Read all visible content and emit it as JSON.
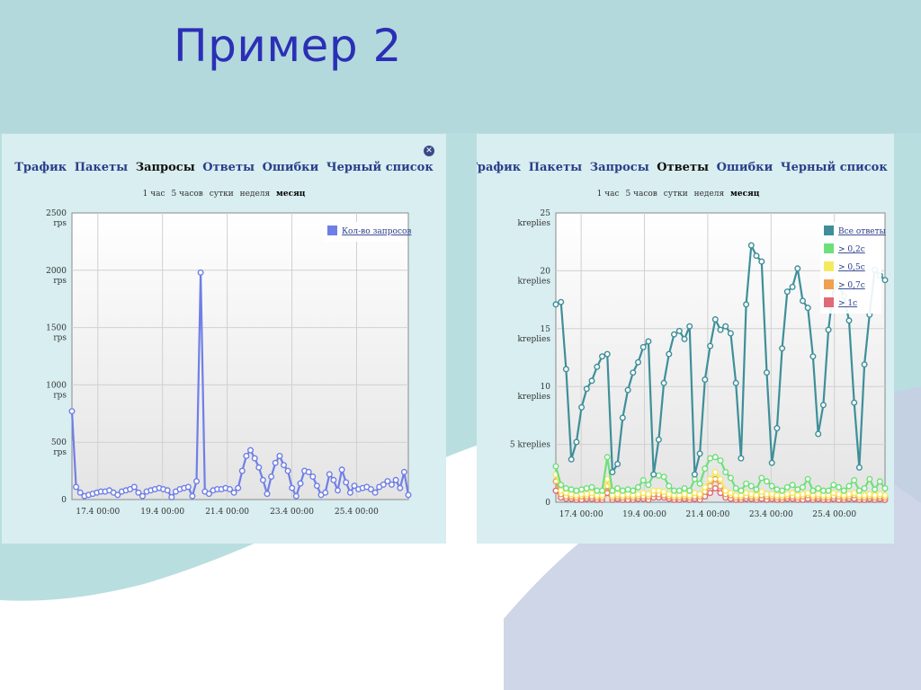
{
  "slide": {
    "title": "Пример 2"
  },
  "colors": {
    "title": "#2b2fb6",
    "panel_bg": "#d8eef0",
    "link": "#2a3e8a"
  },
  "icons": {
    "close": "close-icon",
    "close_glyph": "✕"
  },
  "left_panel": {
    "tabs": [
      "Трафик",
      "Пакеты",
      "Запросы",
      "Ответы",
      "Ошибки",
      "Черный список"
    ],
    "active_tab": 2,
    "periods": [
      "1 час",
      "5 часов",
      "сутки",
      "неделя",
      "месяц"
    ],
    "active_period": 4
  },
  "right_panel": {
    "tabs": [
      "Трафик",
      "Пакеты",
      "Запросы",
      "Ответы",
      "Ошибки",
      "Черный список"
    ],
    "active_tab": 3,
    "periods": [
      "1 час",
      "5 часов",
      "сутки",
      "неделя",
      "месяц"
    ],
    "active_period": 4
  },
  "chart_data": [
    {
      "type": "line",
      "xlabel": "",
      "ylabel": "",
      "xticks": [
        "17.4 00:00",
        "19.4 00:00",
        "21.4 00:00",
        "23.4 00:00",
        "25.4 00:00"
      ],
      "xtick_positions": [
        2,
        7,
        12,
        17,
        22
      ],
      "xlim": [
        0,
        26
      ],
      "ylim": [
        0,
        2500
      ],
      "yticks": [
        {
          "value": 0,
          "label": "0",
          "unit": ""
        },
        {
          "value": 500,
          "label": "500",
          "unit": "rps"
        },
        {
          "value": 1000,
          "label": "1000",
          "unit": "rps"
        },
        {
          "value": 1500,
          "label": "1500",
          "unit": "rps"
        },
        {
          "value": 2000,
          "label": "2000",
          "unit": "rps"
        },
        {
          "value": 2500,
          "label": "2500",
          "unit": "rps"
        }
      ],
      "grid": true,
      "legend_position": "top-right",
      "series": [
        {
          "name": "Кол-во запросов",
          "color": "#6f7fe6",
          "values": [
            770,
            110,
            60,
            30,
            40,
            50,
            60,
            70,
            70,
            80,
            60,
            40,
            70,
            80,
            90,
            110,
            60,
            30,
            70,
            80,
            90,
            100,
            90,
            80,
            20,
            70,
            90,
            100,
            110,
            30,
            160,
            1980,
            70,
            50,
            80,
            90,
            90,
            100,
            90,
            60,
            100,
            250,
            380,
            430,
            360,
            280,
            170,
            50,
            200,
            320,
            380,
            300,
            250,
            100,
            30,
            140,
            250,
            240,
            200,
            120,
            40,
            60,
            220,
            170,
            80,
            260,
            150,
            60,
            120,
            90,
            100,
            110,
            90,
            60,
            110,
            130,
            160,
            130,
            170,
            100,
            240,
            40
          ]
        }
      ]
    },
    {
      "type": "line",
      "xlabel": "",
      "ylabel": "",
      "xticks": [
        "17.4 00:00",
        "19.4 00:00",
        "21.4 00:00",
        "23.4 00:00",
        "25.4 00:00"
      ],
      "xtick_positions": [
        2,
        7,
        12,
        17,
        22
      ],
      "xlim": [
        0,
        26
      ],
      "ylim": [
        0,
        25
      ],
      "yticks": [
        {
          "value": 0,
          "label": "0",
          "unit": ""
        },
        {
          "value": 5,
          "label": "5 kreplies",
          "unit": ""
        },
        {
          "value": 10,
          "label": "10",
          "unit": "kreplies"
        },
        {
          "value": 15,
          "label": "15",
          "unit": "kreplies"
        },
        {
          "value": 20,
          "label": "20",
          "unit": "kreplies"
        },
        {
          "value": 25,
          "label": "25",
          "unit": "kreplies"
        }
      ],
      "grid": true,
      "legend_position": "top-right",
      "series": [
        {
          "name": "> 1с",
          "color": "#e06a78",
          "values": [
            1.0,
            0.4,
            0.3,
            0.3,
            0.2,
            0.2,
            0.3,
            0.3,
            0.2,
            0.2,
            0.8,
            0.2,
            0.3,
            0.2,
            0.2,
            0.2,
            0.3,
            0.3,
            0.2,
            0.4,
            0.4,
            0.4,
            0.3,
            0.2,
            0.2,
            0.3,
            0.2,
            0.3,
            0.2,
            0.5,
            0.8,
            1.2,
            0.8,
            0.4,
            0.3,
            0.2,
            0.2,
            0.3,
            0.3,
            0.2,
            0.3,
            0.2,
            0.3,
            0.2,
            0.2,
            0.3,
            0.3,
            0.2,
            0.2,
            0.3,
            0.2,
            0.3,
            0.2,
            0.2,
            0.3,
            0.2,
            0.2,
            0.3,
            0.3,
            0.2,
            0.2,
            0.3,
            0.2,
            0.3,
            0.2
          ]
        },
        {
          "name": "> 0,7с",
          "color": "#f0a050",
          "values": [
            1.8,
            0.7,
            0.5,
            0.5,
            0.4,
            0.5,
            0.5,
            0.5,
            0.4,
            0.4,
            1.4,
            0.4,
            0.5,
            0.4,
            0.5,
            0.4,
            0.5,
            0.5,
            0.5,
            0.7,
            0.7,
            0.6,
            0.5,
            0.4,
            0.4,
            0.5,
            0.4,
            0.5,
            0.5,
            0.9,
            1.4,
            2.0,
            1.4,
            0.7,
            0.6,
            0.4,
            0.4,
            0.5,
            0.5,
            0.4,
            0.6,
            0.5,
            0.5,
            0.4,
            0.4,
            0.5,
            0.5,
            0.4,
            0.5,
            0.6,
            0.4,
            0.5,
            0.4,
            0.4,
            0.5,
            0.5,
            0.4,
            0.5,
            0.6,
            0.4,
            0.4,
            0.5,
            0.4,
            0.5,
            0.4
          ]
        },
        {
          "name": "> 0,5с",
          "color": "#f4ea60",
          "values": [
            2.4,
            1.0,
            0.8,
            0.7,
            0.6,
            0.7,
            0.7,
            0.8,
            0.6,
            0.6,
            2.0,
            0.6,
            0.7,
            0.6,
            0.7,
            0.6,
            0.7,
            0.8,
            0.7,
            1.0,
            1.0,
            0.9,
            0.7,
            0.6,
            0.6,
            0.7,
            0.6,
            0.8,
            0.7,
            1.3,
            2.0,
            2.6,
            2.0,
            1.0,
            0.8,
            0.6,
            0.6,
            0.8,
            0.7,
            0.6,
            0.9,
            0.7,
            0.7,
            0.6,
            0.6,
            0.7,
            0.8,
            0.6,
            0.7,
            0.8,
            0.6,
            0.7,
            0.6,
            0.6,
            0.8,
            0.7,
            0.6,
            0.7,
            0.8,
            0.6,
            0.6,
            0.7,
            0.6,
            0.7,
            0.6
          ]
        },
        {
          "name": "> 0,2с",
          "color": "#6ee07a",
          "values": [
            3.1,
            1.5,
            1.2,
            1.1,
            1.0,
            1.1,
            1.2,
            1.3,
            1.0,
            1.0,
            3.9,
            1.0,
            1.2,
            1.0,
            1.1,
            1.0,
            1.3,
            1.9,
            1.5,
            2.4,
            2.3,
            2.2,
            1.4,
            1.0,
            1.0,
            1.2,
            1.0,
            2.0,
            1.6,
            2.9,
            3.8,
            3.9,
            3.6,
            2.6,
            2.1,
            1.2,
            1.0,
            1.6,
            1.4,
            1.1,
            2.1,
            1.8,
            1.4,
            1.1,
            1.0,
            1.3,
            1.5,
            1.1,
            1.3,
            2.0,
            1.0,
            1.2,
            1.0,
            1.0,
            1.5,
            1.3,
            1.0,
            1.4,
            1.9,
            1.0,
            1.2,
            2.0,
            1.1,
            1.8,
            1.2
          ]
        },
        {
          "name": "Все ответы",
          "color": "#3e8f99",
          "values": [
            17.1,
            17.3,
            11.5,
            3.7,
            5.2,
            8.2,
            9.8,
            10.5,
            11.7,
            12.6,
            12.8,
            2.6,
            3.3,
            7.3,
            9.7,
            11.2,
            12.1,
            13.4,
            13.9,
            2.4,
            5.4,
            10.3,
            12.8,
            14.5,
            14.8,
            14.1,
            15.2,
            2.4,
            4.2,
            10.6,
            13.5,
            15.8,
            14.9,
            15.2,
            14.6,
            10.3,
            3.8,
            17.1,
            22.2,
            21.3,
            20.8,
            11.2,
            3.4,
            6.4,
            13.3,
            18.2,
            18.6,
            20.2,
            17.4,
            16.8,
            12.6,
            5.9,
            8.4,
            14.9,
            18.6,
            18.8,
            17.8,
            15.7,
            8.6,
            3.0,
            11.9,
            16.2,
            20.1,
            19.6,
            19.2
          ]
        }
      ]
    }
  ]
}
